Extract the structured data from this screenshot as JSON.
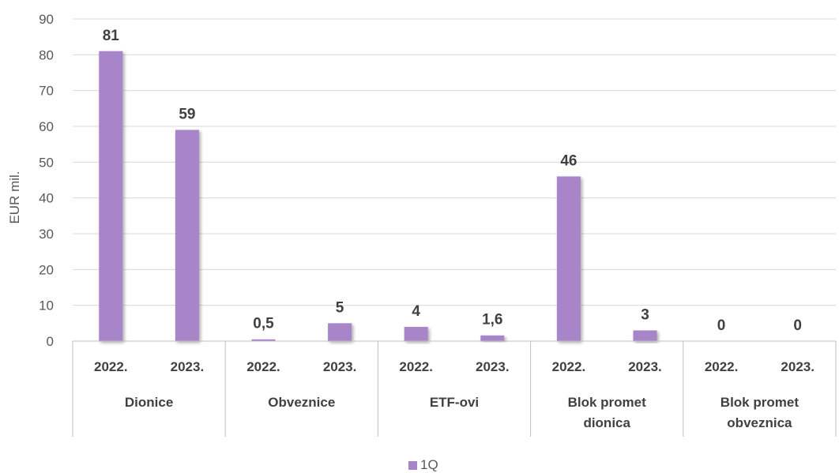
{
  "chart_data": {
    "type": "bar",
    "ylabel": "EUR mil.",
    "ylim": [
      0,
      90
    ],
    "yticks": [
      0,
      10,
      20,
      30,
      40,
      50,
      60,
      70,
      80,
      90
    ],
    "grid": true,
    "legend_position": "bottom",
    "color": "#a884c9",
    "groups": [
      {
        "label_lines": [
          "Dionice"
        ],
        "years": [
          "2022.",
          "2023."
        ]
      },
      {
        "label_lines": [
          "Obveznice"
        ],
        "years": [
          "2022.",
          "2023."
        ]
      },
      {
        "label_lines": [
          "ETF-ovi"
        ],
        "years": [
          "2022.",
          "2023."
        ]
      },
      {
        "label_lines": [
          "Blok promet",
          "dionica"
        ],
        "years": [
          "2022.",
          "2023."
        ]
      },
      {
        "label_lines": [
          "Blok promet",
          "obveznica"
        ],
        "years": [
          "2022.",
          "2023."
        ]
      }
    ],
    "series": [
      {
        "name": "1Q",
        "values": [
          81,
          59,
          0.5,
          5,
          4,
          1.6,
          46,
          3,
          0,
          0
        ],
        "value_labels": [
          "81",
          "59",
          "0,5",
          "5",
          "4",
          "1,6",
          "46",
          "3",
          "0",
          "0"
        ]
      }
    ]
  }
}
